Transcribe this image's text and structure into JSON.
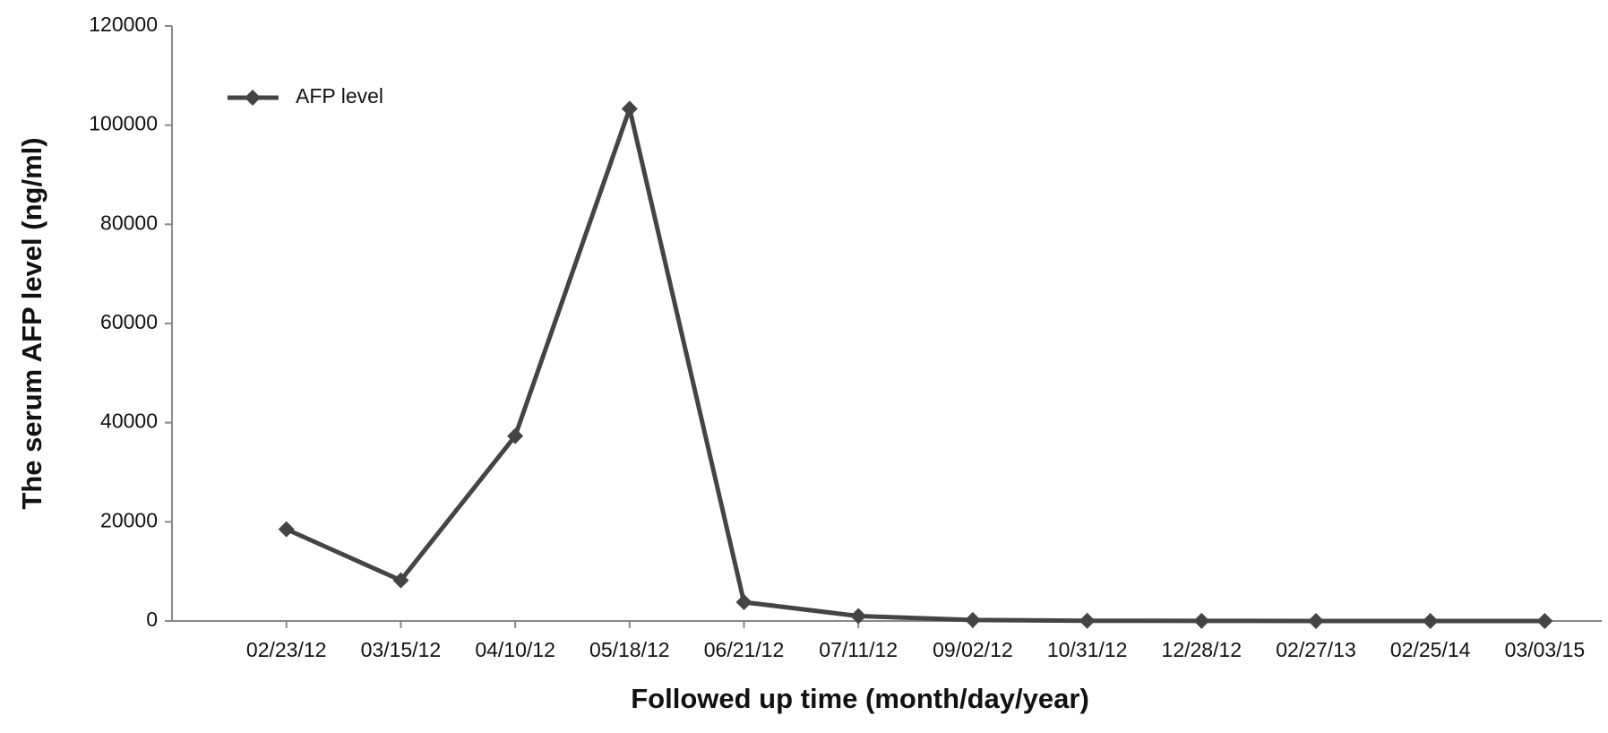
{
  "chart_data": {
    "type": "line",
    "x_label": "Followed up time (month/day/year)",
    "y_label": "The serum AFP level (ng/ml)",
    "categories": [
      "02/23/12",
      "03/15/12",
      "04/10/12",
      "05/18/12",
      "06/21/12",
      "07/11/12",
      "09/02/12",
      "10/31/12",
      "12/28/12",
      "02/27/13",
      "02/25/14",
      "03/03/15"
    ],
    "series": [
      {
        "name": "AFP level",
        "color": "#444444",
        "values": [
          18500,
          8200,
          37300,
          103300,
          3800,
          1000,
          200,
          50,
          20,
          10,
          10,
          10
        ]
      }
    ],
    "ylim": [
      0,
      120000
    ],
    "yticks": [
      0,
      20000,
      40000,
      60000,
      80000,
      100000,
      120000
    ],
    "legend": "top-left"
  }
}
